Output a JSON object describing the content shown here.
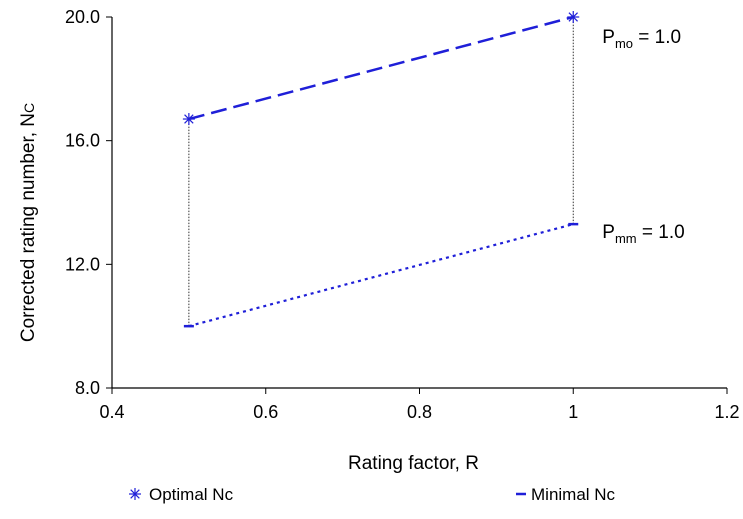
{
  "chart_data": {
    "type": "line",
    "xlabel": "Rating factor, R",
    "ylabel_main": "Corrected rating number, N",
    "ylabel_sub": "C",
    "xlim": [
      0.4,
      1.2
    ],
    "ylim": [
      8.0,
      20.0
    ],
    "x_ticks": [
      0.4,
      0.6,
      0.8,
      1.0,
      1.2
    ],
    "x_tick_labels": [
      "0.4",
      "0.6",
      "0.8",
      "1",
      "1.2"
    ],
    "y_ticks": [
      8.0,
      12.0,
      16.0,
      20.0
    ],
    "y_tick_labels": [
      "8.0",
      "12.0",
      "16.0",
      "20.0"
    ],
    "grid": false,
    "legend_position": "bottom",
    "series": [
      {
        "name": "Optimal Nc",
        "marker": "asterisk",
        "line_style": "dashed",
        "color": "#1f1fd8",
        "x": [
          0.5,
          1.0
        ],
        "y": [
          16.7,
          20.0
        ]
      },
      {
        "name": "Minimal Nc",
        "marker": "dash",
        "line_style": "dotted",
        "color": "#1f1fd8",
        "x": [
          0.5,
          1.0
        ],
        "y": [
          10.0,
          13.3
        ]
      }
    ],
    "connectors": [
      {
        "x": 0.5,
        "y_from": 10.0,
        "y_to": 16.7,
        "color": "#333333"
      },
      {
        "x": 1.0,
        "y_from": 13.3,
        "y_to": 20.0,
        "color": "#333333"
      }
    ],
    "annotations": [
      {
        "main": "P",
        "sub": "mo",
        "suffix": " = 1.0"
      },
      {
        "main": "P",
        "sub": "mm",
        "suffix": " = 1.0"
      }
    ]
  }
}
